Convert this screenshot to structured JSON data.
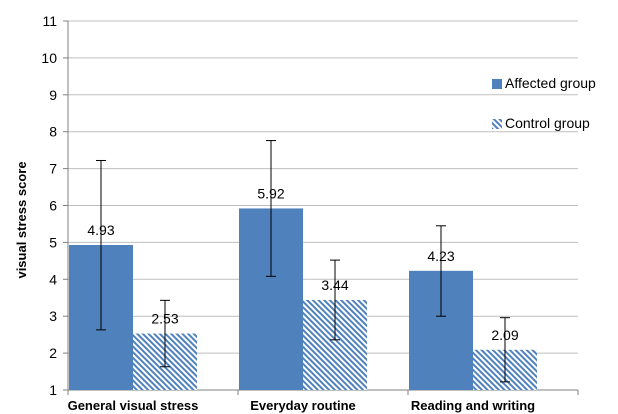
{
  "chart_data": {
    "type": "bar",
    "title": "",
    "xlabel": "",
    "ylabel": "visual stress score",
    "ylim": [
      1,
      11
    ],
    "yticks": [
      1,
      2,
      3,
      4,
      5,
      6,
      7,
      8,
      9,
      10,
      11
    ],
    "grid": true,
    "legend_position": "right",
    "categories": [
      "General visual stress",
      "Everyday routine",
      "Reading and writing"
    ],
    "series": [
      {
        "name": "Affected group",
        "values": [
          4.93,
          5.92,
          4.23
        ],
        "labels": [
          "4.93",
          "5.92",
          "4.23"
        ],
        "error_low": [
          2.63,
          4.08,
          3.0
        ],
        "error_high": [
          7.22,
          7.76,
          5.45
        ],
        "color": "#4f81bd",
        "pattern": "solid"
      },
      {
        "name": "Control group",
        "values": [
          2.53,
          3.44,
          2.09
        ],
        "labels": [
          "2.53",
          "3.44",
          "2.09"
        ],
        "error_low": [
          1.63,
          2.36,
          1.22
        ],
        "error_high": [
          3.43,
          4.52,
          2.96
        ],
        "color": "#4f81bd",
        "pattern": "hatched"
      }
    ]
  }
}
